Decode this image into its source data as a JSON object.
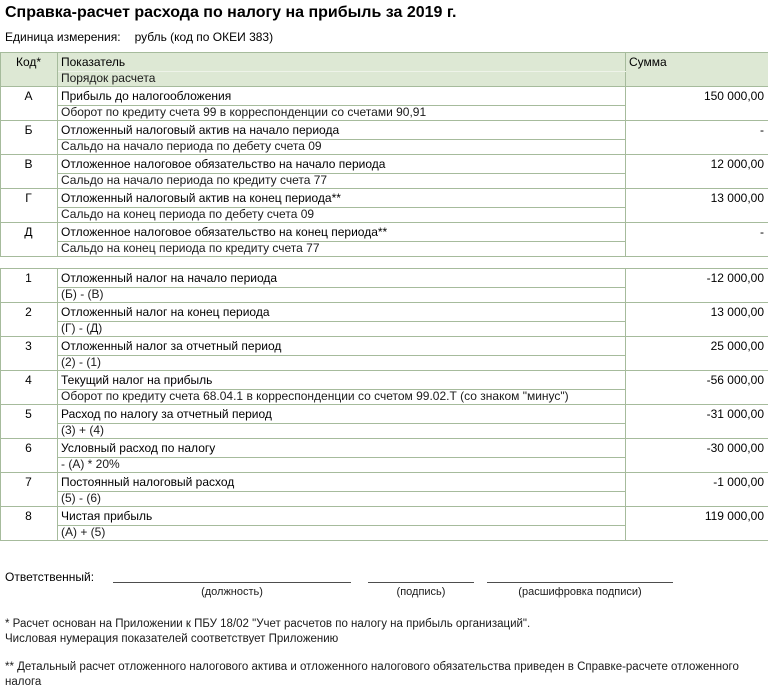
{
  "title": "Справка-расчет расхода по налогу на прибыль за 2019 г.",
  "units": {
    "label": "Единица измерения:",
    "value": "рубль (код по ОКЕИ 383)"
  },
  "table_header": {
    "code": "Код*",
    "indicator": "Показатель",
    "calc_order": "Порядок расчета",
    "sum": "Сумма"
  },
  "table1": {
    "rows": [
      {
        "code": "А",
        "indicator": "Прибыль до налогообложения",
        "calc": "Оборот по кредиту счета 99 в корреспонденции со счетами 90,91",
        "sum": "150 000,00"
      },
      {
        "code": "Б",
        "indicator": "Отложенный налоговый актив на начало периода",
        "calc": "Сальдо на начало периода по дебету счета 09",
        "sum": "-"
      },
      {
        "code": "В",
        "indicator": "Отложенное налоговое обязательство на начало периода",
        "calc": "Сальдо на начало периода по кредиту счета 77",
        "sum": "12 000,00"
      },
      {
        "code": "Г",
        "indicator": "Отложенный налоговый актив на конец периода**",
        "calc": "Сальдо на конец периода по дебету счета 09",
        "sum": "13 000,00"
      },
      {
        "code": "Д",
        "indicator": "Отложенное налоговое обязательство на конец периода**",
        "calc": "Сальдо на конец периода по кредиту счета  77",
        "sum": "-"
      }
    ]
  },
  "table2": {
    "rows": [
      {
        "code": "1",
        "indicator": "Отложенный налог на начало периода",
        "calc": "(Б) - (В)",
        "sum": "-12 000,00"
      },
      {
        "code": "2",
        "indicator": "Отложенный налог на конец периода",
        "calc": "(Г) - (Д)",
        "sum": "13 000,00"
      },
      {
        "code": "3",
        "indicator": "Отложенный налог за отчетный период",
        "calc": "(2) - (1)",
        "sum": "25 000,00"
      },
      {
        "code": "4",
        "indicator": "Текущий налог на прибыль",
        "calc": "Оборот по кредиту счета 68.04.1 в корреспонденции со счетом 99.02.Т (со знаком \"минус\")",
        "sum": "-56 000,00"
      },
      {
        "code": "5",
        "indicator": "Расход по налогу за отчетный период",
        "calc": "(3) + (4)",
        "sum": "-31 000,00"
      },
      {
        "code": "6",
        "indicator": "Условный расход по налогу",
        "calc": "- (А) * 20%",
        "sum": "-30 000,00"
      },
      {
        "code": "7",
        "indicator": "Постоянный налоговый расход",
        "calc": "(5) - (6)",
        "sum": "-1 000,00"
      },
      {
        "code": "8",
        "indicator": "Чистая прибыль",
        "calc": "(А) + (5)",
        "sum": "119 000,00"
      }
    ]
  },
  "signature": {
    "label": "Ответственный:",
    "fields": [
      "(должность)",
      "(подпись)",
      "(расшифровка подписи)"
    ]
  },
  "footnotes": {
    "fn1_line1": "* Расчет основан на Приложении к ПБУ 18/02 \"Учет расчетов по налогу на прибыль организаций\".",
    "fn1_line2": "Числовая нумерация показателей соответствует Приложению",
    "fn2": "** Детальный расчет отложенного налогового актива и отложенного налогового обязательства приведен в Справке-расчете отложенного налога"
  },
  "colors": {
    "header_bg": "#dde8d4",
    "border": "#a6bb9c",
    "outer_border": "#93a989",
    "text": "#000000"
  }
}
